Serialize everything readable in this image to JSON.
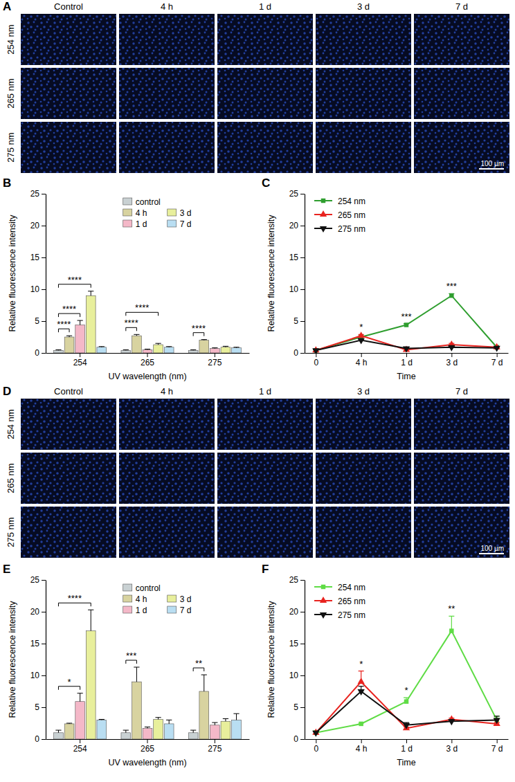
{
  "image_panels": [
    {
      "panel_label": "A",
      "columns": [
        "Control",
        "4 h",
        "1 d",
        "3 d",
        "7 d"
      ],
      "rows": [
        "254 nm",
        "265 nm",
        "275 nm"
      ],
      "scale_bar": "100 µm"
    },
    {
      "panel_label": "D",
      "columns": [
        "Control",
        "4 h",
        "1 d",
        "3 d",
        "7 d"
      ],
      "rows": [
        "254 nm",
        "265 nm",
        "275 nm"
      ],
      "scale_bar": "100 µm"
    }
  ],
  "chart_data": [
    {
      "panel_label": "B",
      "type": "bar",
      "categories": [
        "254",
        "265",
        "275"
      ],
      "xlabel": "UV wavelength (nm)",
      "ylabel": "Relative fluorescence intensity",
      "ylim": [
        0,
        25
      ],
      "yticks": [
        0,
        5,
        10,
        15,
        20,
        25
      ],
      "legend": "top",
      "series": [
        {
          "name": "control",
          "color": "#c9d1d3",
          "values": [
            0.4,
            0.4,
            0.4
          ],
          "errors": [
            0.1,
            0.1,
            0.1
          ]
        },
        {
          "name": "4 h",
          "color": "#d8d3a0",
          "values": [
            2.5,
            2.7,
            2.0
          ],
          "errors": [
            0.2,
            0.2,
            0.1
          ]
        },
        {
          "name": "1 d",
          "color": "#f4b8c8",
          "values": [
            4.4,
            0.5,
            0.7
          ],
          "errors": [
            0.7,
            0.1,
            0.1
          ]
        },
        {
          "name": "3 d",
          "color": "#e8ef9c",
          "values": [
            9,
            1.3,
            0.9
          ],
          "errors": [
            0.7,
            0.2,
            0.15
          ]
        },
        {
          "name": "7 d",
          "color": "#b9def2",
          "values": [
            0.9,
            0.9,
            0.8
          ],
          "errors": [
            0.1,
            0.1,
            0.1
          ]
        }
      ],
      "annotations": [
        {
          "text": "****",
          "category": 0,
          "from": 0,
          "to": 1
        },
        {
          "text": "****",
          "category": 0,
          "from": 0,
          "to": 2
        },
        {
          "text": "****",
          "category": 0,
          "from": 0,
          "to": 3
        },
        {
          "text": "****",
          "category": 1,
          "from": 0,
          "to": 1
        },
        {
          "text": "****",
          "category": 1,
          "from": 0,
          "to": 3
        },
        {
          "text": "****",
          "category": 2,
          "from": 0,
          "to": 1
        }
      ]
    },
    {
      "panel_label": "C",
      "type": "line",
      "categories": [
        "0",
        "4 h",
        "1 d",
        "3 d",
        "7 d"
      ],
      "xlabel": "Time",
      "ylabel": "Relative fluorescence intensity",
      "ylim": [
        0,
        25
      ],
      "yticks": [
        0,
        5,
        10,
        15,
        20,
        25
      ],
      "legend": "top-left",
      "series": [
        {
          "name": "254 nm",
          "color": "#2f9e2f",
          "marker": "square",
          "values": [
            0.4,
            2.5,
            4.4,
            9,
            0.9
          ],
          "errors": [
            0.1,
            0.2,
            0.2,
            0.3,
            0.1
          ]
        },
        {
          "name": "265 nm",
          "color": "#e8231f",
          "marker": "triangle",
          "values": [
            0.4,
            2.7,
            0.5,
            1.3,
            0.9
          ],
          "errors": [
            0.1,
            0.2,
            0.1,
            0.2,
            0.1
          ]
        },
        {
          "name": "275 nm",
          "color": "#111111",
          "marker": "triangle-down",
          "values": [
            0.4,
            2.0,
            0.7,
            0.9,
            0.8
          ],
          "errors": [
            0.1,
            0.1,
            0.1,
            0.15,
            0.1
          ]
        }
      ],
      "annotations": [
        {
          "text": "*",
          "category": 1
        },
        {
          "text": "***",
          "category": 2
        },
        {
          "text": "***",
          "category": 3
        }
      ]
    },
    {
      "panel_label": "E",
      "type": "bar",
      "categories": [
        "254",
        "265",
        "275"
      ],
      "xlabel": "UV wavelength (nm)",
      "ylabel": "Relative fluorescence intensity",
      "ylim": [
        0,
        25
      ],
      "yticks": [
        0,
        5,
        10,
        15,
        20,
        25
      ],
      "legend": "top",
      "series": [
        {
          "name": "control",
          "color": "#c9d1d3",
          "values": [
            1,
            1,
            1
          ],
          "errors": [
            0.4,
            0.4,
            0.4
          ]
        },
        {
          "name": "4 h",
          "color": "#d8d3a0",
          "values": [
            2.4,
            9,
            7.5
          ],
          "errors": [
            0.1,
            2.3,
            2.6
          ]
        },
        {
          "name": "1 d",
          "color": "#f4b8c8",
          "values": [
            5.9,
            1.7,
            2.2
          ],
          "errors": [
            1.3,
            0.2,
            0.4
          ]
        },
        {
          "name": "3 d",
          "color": "#e8ef9c",
          "values": [
            17,
            3.1,
            2.8
          ],
          "errors": [
            3.3,
            0.3,
            0.4
          ]
        },
        {
          "name": "7 d",
          "color": "#b9def2",
          "values": [
            3,
            2.4,
            3
          ],
          "errors": [
            0.1,
            0.6,
            1
          ]
        }
      ],
      "annotations": [
        {
          "text": "*",
          "category": 0,
          "from": 0,
          "to": 2
        },
        {
          "text": "****",
          "category": 0,
          "from": 0,
          "to": 3
        },
        {
          "text": "***",
          "category": 1,
          "from": 0,
          "to": 1
        },
        {
          "text": "**",
          "category": 2,
          "from": 0,
          "to": 1
        }
      ]
    },
    {
      "panel_label": "F",
      "type": "line",
      "categories": [
        "0",
        "4 h",
        "1 d",
        "3 d",
        "7 d"
      ],
      "xlabel": "Time",
      "ylabel": "Relative fluorescence intensity",
      "ylim": [
        0,
        25
      ],
      "yticks": [
        0,
        5,
        10,
        15,
        20,
        25
      ],
      "legend": "top-left",
      "series": [
        {
          "name": "254 nm",
          "color": "#5fdc45",
          "marker": "square",
          "values": [
            1,
            2.4,
            5.9,
            17,
            3
          ],
          "errors": [
            0.3,
            0.1,
            0.6,
            2.3,
            0.6
          ]
        },
        {
          "name": "265 nm",
          "color": "#e8231f",
          "marker": "triangle",
          "values": [
            1,
            9,
            1.7,
            3.1,
            2.4
          ],
          "errors": [
            0.2,
            1.7,
            0.2,
            0.2,
            0.2
          ]
        },
        {
          "name": "275 nm",
          "color": "#111111",
          "marker": "triangle-down",
          "values": [
            1,
            7.5,
            2.2,
            2.8,
            3
          ],
          "errors": [
            0.2,
            0.8,
            0.4,
            0.3,
            0.6
          ]
        }
      ],
      "annotations": [
        {
          "text": "*",
          "category": 1
        },
        {
          "text": "*",
          "category": 2
        },
        {
          "text": "**",
          "category": 3
        }
      ]
    }
  ]
}
